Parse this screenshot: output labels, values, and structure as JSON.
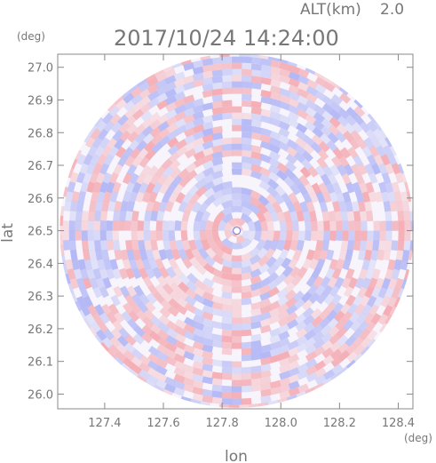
{
  "header": {
    "altitude_label": "ALT(km)",
    "altitude_value": "2.0",
    "timestamp": "2017/10/24 14:24:00"
  },
  "chart_data": {
    "type": "heatmap",
    "title": "2017/10/24 14:24:00",
    "xlabel": "lon",
    "ylabel": "lat",
    "xunit": "(deg)",
    "yunit": "(deg)",
    "xlim": [
      127.24,
      128.45
    ],
    "ylim": [
      25.955,
      27.04
    ],
    "x_ticks": [
      127.4,
      127.6,
      127.8,
      128.0,
      128.2,
      128.4
    ],
    "x_tick_labels": [
      "127.4",
      "127.6",
      "127.8",
      "128.0",
      "128.2",
      "128.4"
    ],
    "y_ticks": [
      26.0,
      26.1,
      26.2,
      26.3,
      26.4,
      26.5,
      26.6,
      26.7,
      26.8,
      26.9,
      27.0
    ],
    "y_tick_labels": [
      "26.0",
      "26.1",
      "26.2",
      "26.3",
      "26.4",
      "26.5",
      "26.6",
      "26.7",
      "26.8",
      "26.9",
      "27.0"
    ],
    "radar_center": {
      "lon": 127.85,
      "lat": 26.5
    },
    "colors": {
      "positive": "#f4a0a8",
      "negative": "#a8aef4",
      "axis": "#888888"
    },
    "grid": false
  }
}
